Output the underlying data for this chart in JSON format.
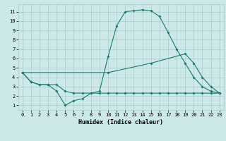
{
  "xlabel": "Humidex (Indice chaleur)",
  "bg_color": "#cce8e8",
  "grid_color": "#aacccc",
  "line_color": "#1a7a6e",
  "line2_x": [
    0,
    1,
    2,
    3,
    4,
    5,
    6,
    7,
    8,
    9,
    10,
    11,
    12,
    13,
    14,
    15,
    16,
    17,
    18,
    19,
    20,
    21,
    22,
    23
  ],
  "line2_y": [
    4.5,
    3.5,
    3.2,
    3.2,
    2.5,
    1.0,
    1.5,
    1.7,
    2.3,
    2.5,
    6.2,
    9.5,
    11.0,
    11.1,
    11.2,
    11.1,
    10.5,
    8.8,
    7.0,
    5.5,
    4.0,
    3.0,
    2.5,
    2.3
  ],
  "line3_x": [
    0,
    10,
    15,
    19,
    20,
    21,
    22,
    23
  ],
  "line3_y": [
    4.5,
    4.5,
    5.5,
    6.5,
    5.5,
    4.0,
    3.0,
    2.3
  ],
  "line1_x": [
    0,
    1,
    2,
    3,
    4,
    5,
    6,
    7,
    8,
    9,
    10,
    11,
    12,
    13,
    14,
    15,
    16,
    17,
    18,
    19,
    20,
    21,
    22,
    23
  ],
  "line1_y": [
    4.5,
    3.5,
    3.2,
    3.2,
    3.2,
    2.5,
    2.3,
    2.3,
    2.3,
    2.3,
    2.3,
    2.3,
    2.3,
    2.3,
    2.3,
    2.3,
    2.3,
    2.3,
    2.3,
    2.3,
    2.3,
    2.3,
    2.3,
    2.3
  ],
  "xlim": [
    -0.5,
    23.5
  ],
  "ylim": [
    0.5,
    11.8
  ],
  "yticks": [
    1,
    2,
    3,
    4,
    5,
    6,
    7,
    8,
    9,
    10,
    11
  ],
  "xticks": [
    0,
    1,
    2,
    3,
    4,
    5,
    6,
    7,
    8,
    9,
    10,
    11,
    12,
    13,
    14,
    15,
    16,
    17,
    18,
    19,
    20,
    21,
    22,
    23
  ]
}
